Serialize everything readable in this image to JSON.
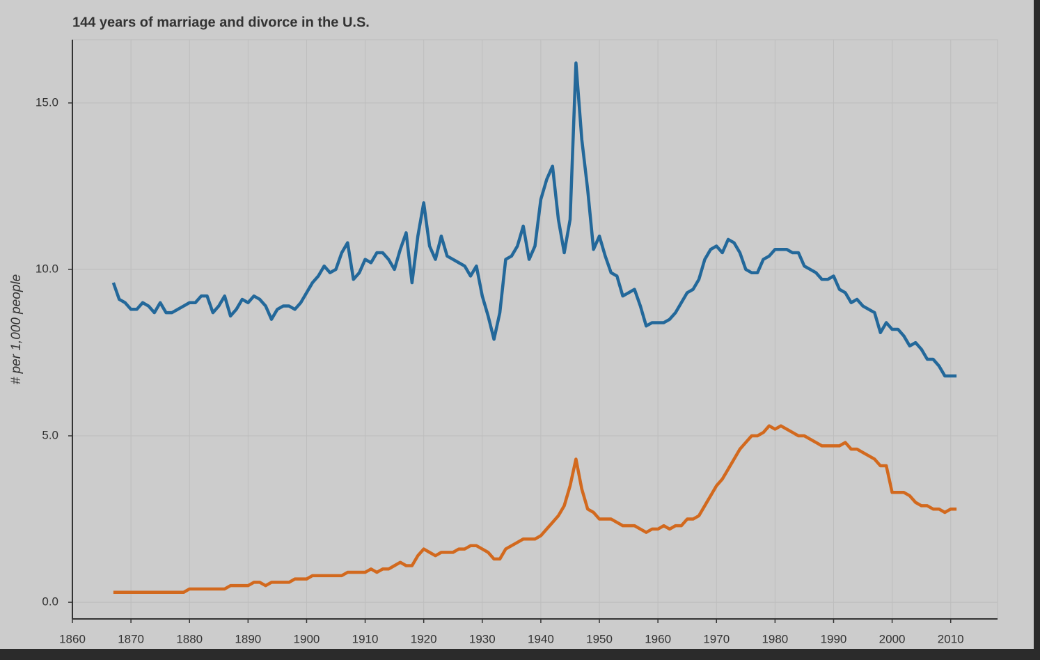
{
  "chart_data": {
    "type": "line",
    "title": "144 years of marriage and divorce in the U.S.",
    "y_label": "# per 1,000 people",
    "x": [
      1867,
      1868,
      1869,
      1870,
      1871,
      1872,
      1873,
      1874,
      1875,
      1876,
      1877,
      1878,
      1879,
      1880,
      1881,
      1882,
      1883,
      1884,
      1885,
      1886,
      1887,
      1888,
      1889,
      1890,
      1891,
      1892,
      1893,
      1894,
      1895,
      1896,
      1897,
      1898,
      1899,
      1900,
      1901,
      1902,
      1903,
      1904,
      1905,
      1906,
      1907,
      1908,
      1909,
      1910,
      1911,
      1912,
      1913,
      1914,
      1915,
      1916,
      1917,
      1918,
      1919,
      1920,
      1921,
      1922,
      1923,
      1924,
      1925,
      1926,
      1927,
      1928,
      1929,
      1930,
      1931,
      1932,
      1933,
      1934,
      1935,
      1936,
      1937,
      1938,
      1939,
      1940,
      1941,
      1942,
      1943,
      1944,
      1945,
      1946,
      1947,
      1948,
      1949,
      1950,
      1951,
      1952,
      1953,
      1954,
      1955,
      1956,
      1957,
      1958,
      1959,
      1960,
      1961,
      1962,
      1963,
      1964,
      1965,
      1966,
      1967,
      1968,
      1969,
      1970,
      1971,
      1972,
      1973,
      1974,
      1975,
      1976,
      1977,
      1978,
      1979,
      1980,
      1981,
      1982,
      1983,
      1984,
      1985,
      1986,
      1987,
      1988,
      1989,
      1990,
      1991,
      1992,
      1993,
      1994,
      1995,
      1996,
      1997,
      1998,
      1999,
      2000,
      2001,
      2002,
      2003,
      2004,
      2005,
      2006,
      2007,
      2008,
      2009,
      2010,
      2011
    ],
    "series": [
      {
        "color": "#23689a",
        "values": [
          9.6,
          9.1,
          9.0,
          8.8,
          8.8,
          9.0,
          8.9,
          8.7,
          9.0,
          8.7,
          8.7,
          8.8,
          8.9,
          9.0,
          9.0,
          9.2,
          9.2,
          8.7,
          8.9,
          9.2,
          8.6,
          8.8,
          9.1,
          9.0,
          9.2,
          9.1,
          8.9,
          8.5,
          8.8,
          8.9,
          8.9,
          8.8,
          9.0,
          9.3,
          9.6,
          9.8,
          10.1,
          9.9,
          10.0,
          10.5,
          10.8,
          9.7,
          9.9,
          10.3,
          10.2,
          10.5,
          10.5,
          10.3,
          10.0,
          10.6,
          11.1,
          9.6,
          11.0,
          12.0,
          10.7,
          10.3,
          11.0,
          10.4,
          10.3,
          10.2,
          10.1,
          9.8,
          10.1,
          9.2,
          8.6,
          7.9,
          8.7,
          10.3,
          10.4,
          10.7,
          11.3,
          10.3,
          10.7,
          12.1,
          12.7,
          13.1,
          11.5,
          10.5,
          11.5,
          16.2,
          13.9,
          12.4,
          10.6,
          11.0,
          10.4,
          9.9,
          9.8,
          9.2,
          9.3,
          9.4,
          8.9,
          8.3,
          8.4,
          8.4,
          8.4,
          8.5,
          8.7,
          9.0,
          9.3,
          9.4,
          9.7,
          10.3,
          10.6,
          10.7,
          10.5,
          10.9,
          10.8,
          10.5,
          10.0,
          9.9,
          9.9,
          10.3,
          10.4,
          10.6,
          10.6,
          10.6,
          10.5,
          10.5,
          10.1,
          10.0,
          9.9,
          9.7,
          9.7,
          9.8,
          9.4,
          9.3,
          9.0,
          9.1,
          8.9,
          8.8,
          8.7,
          8.1,
          8.4,
          8.2,
          8.2,
          8.0,
          7.7,
          7.8,
          7.6,
          7.3,
          7.3,
          7.1,
          6.8,
          6.8,
          6.8
        ]
      },
      {
        "color": "#d2691e",
        "values": [
          0.3,
          0.3,
          0.3,
          0.3,
          0.3,
          0.3,
          0.3,
          0.3,
          0.3,
          0.3,
          0.3,
          0.3,
          0.3,
          0.4,
          0.4,
          0.4,
          0.4,
          0.4,
          0.4,
          0.4,
          0.5,
          0.5,
          0.5,
          0.5,
          0.6,
          0.6,
          0.5,
          0.6,
          0.6,
          0.6,
          0.6,
          0.7,
          0.7,
          0.7,
          0.8,
          0.8,
          0.8,
          0.8,
          0.8,
          0.8,
          0.9,
          0.9,
          0.9,
          0.9,
          1.0,
          0.9,
          1.0,
          1.0,
          1.1,
          1.2,
          1.1,
          1.1,
          1.4,
          1.6,
          1.5,
          1.4,
          1.5,
          1.5,
          1.5,
          1.6,
          1.6,
          1.7,
          1.7,
          1.6,
          1.5,
          1.3,
          1.3,
          1.6,
          1.7,
          1.8,
          1.9,
          1.9,
          1.9,
          2.0,
          2.2,
          2.4,
          2.6,
          2.9,
          3.5,
          4.3,
          3.4,
          2.8,
          2.7,
          2.5,
          2.5,
          2.5,
          2.4,
          2.3,
          2.3,
          2.3,
          2.2,
          2.1,
          2.2,
          2.2,
          2.3,
          2.2,
          2.3,
          2.3,
          2.5,
          2.5,
          2.6,
          2.9,
          3.2,
          3.5,
          3.7,
          4.0,
          4.3,
          4.6,
          4.8,
          5.0,
          5.0,
          5.1,
          5.3,
          5.2,
          5.3,
          5.2,
          5.1,
          5.0,
          5.0,
          4.9,
          4.8,
          4.7,
          4.7,
          4.7,
          4.7,
          4.8,
          4.6,
          4.6,
          4.5,
          4.4,
          4.3,
          4.1,
          4.1,
          3.3,
          3.3,
          3.3,
          3.2,
          3.0,
          2.9,
          2.9,
          2.8,
          2.8,
          2.7,
          2.8,
          2.8
        ]
      }
    ],
    "xlim": [
      1860,
      2018
    ],
    "ylim": [
      -0.5,
      16.9
    ],
    "xticks": [
      1860,
      1870,
      1880,
      1890,
      1900,
      1910,
      1920,
      1930,
      1940,
      1950,
      1960,
      1970,
      1980,
      1990,
      2000,
      2010
    ],
    "yticks": [
      {
        "value": 0,
        "label": "0.0"
      },
      {
        "value": 5,
        "label": "5.0"
      },
      {
        "value": 10,
        "label": "10.0"
      },
      {
        "value": 15,
        "label": "15.0"
      }
    ],
    "grid": true
  }
}
